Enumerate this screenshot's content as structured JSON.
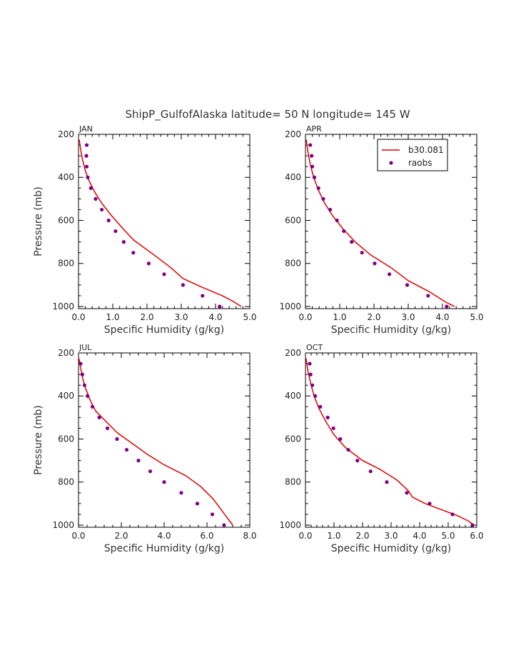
{
  "figure_title": "ShipP_GulfofAlaska  latitude= 50 N longitude= 145 W",
  "colors": {
    "model": "#dd0000",
    "obs": "#800080",
    "axis": "#000000"
  },
  "legend": {
    "model_label": "b30.081",
    "obs_label": "raobs",
    "placement": "top-right of APR panel"
  },
  "chart_data": [
    {
      "type": "line+scatter",
      "title": "JAN",
      "xlabel": "Specific Humidity (g/kg)",
      "ylabel": "Pressure (mb)",
      "xlim": [
        0,
        5
      ],
      "ylim": [
        200,
        1010
      ],
      "xticks": [
        "0.0",
        "1.0",
        "2.0",
        "3.0",
        "4.0",
        "5.0"
      ],
      "yticks": [
        "200",
        "400",
        "600",
        "800",
        "1000"
      ],
      "model": {
        "name": "b30.081",
        "x": [
          0.02,
          0.06,
          0.12,
          0.2,
          0.32,
          0.48,
          0.68,
          0.95,
          1.25,
          1.6,
          2.2,
          2.7,
          3.05,
          3.6,
          4.2,
          4.5,
          4.75
        ],
        "y": [
          225,
          270,
          320,
          370,
          420,
          470,
          520,
          575,
          630,
          690,
          760,
          820,
          870,
          910,
          950,
          975,
          1000
        ]
      },
      "obs": {
        "name": "raobs",
        "x": [
          0.24,
          0.23,
          0.24,
          0.27,
          0.36,
          0.5,
          0.68,
          0.88,
          1.08,
          1.32,
          1.6,
          2.05,
          2.5,
          3.05,
          3.62,
          4.12
        ],
        "y": [
          250,
          300,
          350,
          400,
          450,
          500,
          550,
          600,
          650,
          700,
          750,
          800,
          850,
          900,
          950,
          1000
        ]
      }
    },
    {
      "type": "line+scatter",
      "title": "APR",
      "xlabel": "Specific Humidity (g/kg)",
      "ylabel": "",
      "xlim": [
        0,
        5
      ],
      "ylim": [
        200,
        1010
      ],
      "xticks": [
        "0.0",
        "1.0",
        "2.0",
        "3.0",
        "4.0",
        "5.0"
      ],
      "yticks": [
        "200",
        "400",
        "600",
        "800",
        "1000"
      ],
      "model": {
        "name": "b30.081",
        "x": [
          0.02,
          0.07,
          0.14,
          0.24,
          0.38,
          0.56,
          0.8,
          1.1,
          1.45,
          1.9,
          2.5,
          3.0,
          3.6,
          4.1,
          4.35
        ],
        "y": [
          225,
          280,
          340,
          400,
          460,
          520,
          580,
          640,
          700,
          760,
          820,
          880,
          930,
          980,
          1000
        ]
      },
      "obs": {
        "name": "raobs",
        "x": [
          0.14,
          0.18,
          0.2,
          0.26,
          0.38,
          0.52,
          0.72,
          0.92,
          1.12,
          1.35,
          1.65,
          2.02,
          2.45,
          2.97,
          3.58,
          4.12
        ],
        "y": [
          250,
          300,
          350,
          400,
          450,
          500,
          550,
          600,
          650,
          700,
          750,
          800,
          850,
          900,
          950,
          1000
        ]
      }
    },
    {
      "type": "line+scatter",
      "title": "JUL",
      "xlabel": "Specific Humidity (g/kg)",
      "ylabel": "Pressure (mb)",
      "xlim": [
        0,
        8
      ],
      "ylim": [
        200,
        1010
      ],
      "xticks": [
        "0.0",
        "2.0",
        "4.0",
        "6.0",
        "8.0"
      ],
      "yticks": [
        "200",
        "400",
        "600",
        "800",
        "1000"
      ],
      "model": {
        "name": "b30.081",
        "x": [
          0.02,
          0.1,
          0.2,
          0.35,
          0.55,
          0.8,
          1.3,
          1.8,
          2.5,
          3.2,
          4.0,
          5.0,
          5.7,
          6.3,
          6.6,
          6.9,
          7.2
        ],
        "y": [
          225,
          270,
          320,
          370,
          420,
          470,
          520,
          570,
          620,
          670,
          720,
          770,
          820,
          880,
          920,
          960,
          1000
        ]
      },
      "obs": {
        "name": "raobs",
        "x": [
          0.1,
          0.18,
          0.28,
          0.42,
          0.65,
          0.97,
          1.35,
          1.8,
          2.25,
          2.8,
          3.35,
          4.0,
          4.8,
          5.55,
          6.25,
          6.8
        ],
        "y": [
          250,
          300,
          350,
          400,
          450,
          500,
          550,
          600,
          650,
          700,
          750,
          800,
          850,
          900,
          950,
          1000
        ]
      }
    },
    {
      "type": "line+scatter",
      "title": "OCT",
      "xlabel": "Specific Humidity (g/kg)",
      "ylabel": "",
      "xlim": [
        0,
        6
      ],
      "ylim": [
        200,
        1010
      ],
      "xticks": [
        "0.0",
        "1.0",
        "2.0",
        "3.0",
        "4.0",
        "5.0",
        "6.0"
      ],
      "yticks": [
        "200",
        "400",
        "600",
        "800",
        "1000"
      ],
      "model": {
        "name": "b30.081",
        "x": [
          0.02,
          0.08,
          0.18,
          0.3,
          0.48,
          0.72,
          1.0,
          1.4,
          2.0,
          2.6,
          3.2,
          3.6,
          3.75,
          4.2,
          4.8,
          5.3,
          5.7,
          5.9
        ],
        "y": [
          225,
          280,
          340,
          400,
          460,
          520,
          580,
          640,
          700,
          740,
          790,
          840,
          870,
          900,
          930,
          955,
          980,
          1000
        ]
      },
      "obs": {
        "name": "raobs",
        "x": [
          0.15,
          0.18,
          0.24,
          0.34,
          0.52,
          0.78,
          0.98,
          1.22,
          1.5,
          1.82,
          2.28,
          2.85,
          3.55,
          4.35,
          5.15,
          5.85
        ],
        "y": [
          250,
          300,
          350,
          400,
          450,
          500,
          550,
          600,
          650,
          700,
          750,
          800,
          850,
          900,
          950,
          1000
        ]
      }
    }
  ]
}
